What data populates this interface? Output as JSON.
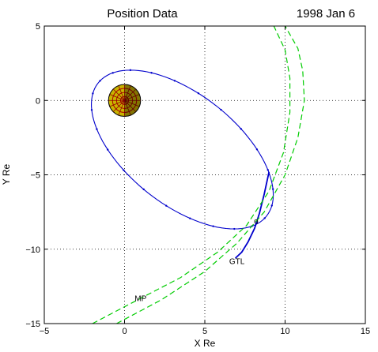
{
  "chart_data": {
    "type": "line",
    "title": "Position  Data",
    "date_label": "1998  Jan  6",
    "xlabel": "X Re",
    "ylabel": "Y Re",
    "xlim": [
      -5,
      15
    ],
    "ylim": [
      -15,
      5
    ],
    "xticks": [
      -5,
      0,
      5,
      10,
      15
    ],
    "yticks": [
      -15,
      -10,
      -5,
      0,
      5
    ],
    "xtick_labels": [
      "−5",
      "0",
      "5",
      "10",
      "15"
    ],
    "ytick_labels": [
      "−15",
      "−10",
      "−5",
      "0",
      "5"
    ],
    "grid": true,
    "annotations": [
      {
        "text": "MP",
        "x": 1.0,
        "y": -13.5
      },
      {
        "text": "GTL",
        "x": 7.0,
        "y": -11.0
      },
      {
        "text": "o",
        "x": 8.2,
        "y": -8.3
      }
    ],
    "earth": {
      "x": 0,
      "y": 0,
      "radius": 1
    },
    "series": [
      {
        "role": "orbit",
        "color": "#0000cc",
        "ellipse": {
          "center": [
            3.6,
            -3.3
          ],
          "semi_major": 6.9,
          "semi_minor": 3.6,
          "rotation_deg": -42
        }
      },
      {
        "role": "trajectory",
        "color": "#0000cc",
        "x": [
          9.0,
          8.7,
          8.4,
          8.1,
          7.7,
          7.3,
          6.9
        ],
        "y": [
          -4.8,
          -6.3,
          -7.6,
          -8.6,
          -9.5,
          -10.2,
          -10.6
        ]
      },
      {
        "role": "boundary",
        "color": "#00cc00",
        "style": "dashed",
        "x": [
          -2.0,
          1.0,
          3.5,
          5.8,
          7.6,
          9.0,
          9.9,
          10.3,
          10.3,
          10.0,
          9.3
        ],
        "y": [
          -15.0,
          -13.3,
          -11.9,
          -10.2,
          -8.4,
          -6.1,
          -3.5,
          -0.8,
          1.5,
          3.4,
          5.0
        ]
      },
      {
        "role": "boundary",
        "color": "#00cc00",
        "style": "dashed",
        "x": [
          -0.5,
          2.3,
          5.0,
          7.0,
          8.7,
          10.0,
          10.8,
          11.2,
          11.1,
          10.8,
          10.0
        ],
        "y": [
          -15.0,
          -13.4,
          -11.5,
          -9.6,
          -7.5,
          -5.0,
          -2.5,
          0.0,
          2.0,
          3.5,
          5.0
        ]
      }
    ]
  }
}
